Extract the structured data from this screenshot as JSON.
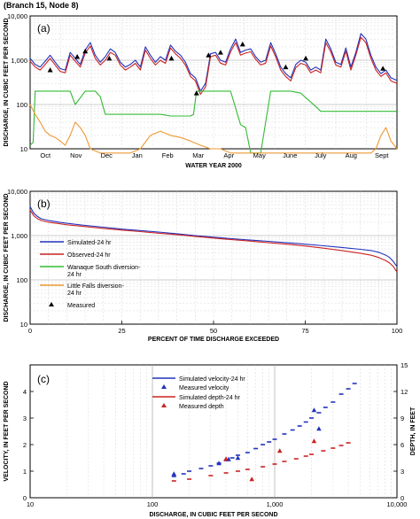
{
  "header": {
    "title": "(Branch 15, Node 8)"
  },
  "charts": [
    {
      "type": "line",
      "panel_label": "(a)",
      "title": "",
      "xlabel": "WATER YEAR 2000",
      "ylabel": "DISCHARGE, IN CUBIC FEET PER SECOND",
      "x_categories": [
        "Oct",
        "Nov",
        "Dec",
        "Jan",
        "Feb",
        "Mar",
        "Apr",
        "May",
        "June",
        "July",
        "Aug",
        "Sept"
      ],
      "y_scale": "log",
      "ylim": [
        10,
        10000
      ],
      "y_ticks": [
        10,
        100,
        "1,000",
        "10,000"
      ],
      "grid": true
    },
    {
      "type": "line",
      "panel_label": "(b)",
      "title": "",
      "xlabel": "PERCENT OF TIME DISCHARGE EXCEEDED",
      "ylabel": "DISCHARGE, IN CUBIC FEET PER SECOND",
      "x_ticks": [
        0,
        25,
        50,
        75,
        100
      ],
      "xlim": [
        0,
        100
      ],
      "y_scale": "log",
      "ylim": [
        10,
        10000
      ],
      "y_ticks": [
        10,
        100,
        "1,000",
        "10,000"
      ],
      "grid": true,
      "legend_position": "left",
      "legend": [
        "Simulated-24 hr",
        "Observed-24 hr",
        "Wanaque South diversion-\n24 hr",
        "Little Falls diversion-\n24 hr",
        "Measured"
      ]
    },
    {
      "type": "scatter",
      "panel_label": "(c)",
      "title": "",
      "xlabel": "DISCHARGE, IN CUBIC FEET PER SECOND",
      "ylabel": "VELOCITY, IN FEET PER SECOND",
      "ylabel_right": "DEPTH, IN FEET",
      "x_scale": "log",
      "xlim": [
        10,
        10000
      ],
      "x_ticks": [
        10,
        100,
        "1,000",
        "10,000"
      ],
      "y_ticks": [
        0,
        1,
        2,
        3,
        4
      ],
      "ylim": [
        0,
        5
      ],
      "y_ticks_right": [
        0,
        3,
        6,
        9,
        12,
        15
      ],
      "ylim_right": [
        0,
        15
      ],
      "grid": true,
      "legend_position": "top-center",
      "legend": [
        "Simulated velocity-24 hr",
        "Measured velocity",
        "Simulated depth-24 hr",
        "Measured depth"
      ]
    }
  ],
  "chart_data": [
    {
      "type": "line",
      "ylim": [
        10,
        10000
      ],
      "y_scale": "log",
      "x_day_range": [
        0,
        366
      ],
      "series": [
        {
          "name": "Simulated-24 hr",
          "color": "#2233bb",
          "x": [
            0,
            5,
            10,
            15,
            20,
            25,
            30,
            35,
            40,
            45,
            50,
            55,
            60,
            65,
            70,
            75,
            80,
            85,
            90,
            95,
            100,
            105,
            110,
            115,
            120,
            125,
            130,
            135,
            140,
            145,
            150,
            155,
            160,
            165,
            170,
            175,
            180,
            185,
            190,
            195,
            200,
            205,
            210,
            215,
            220,
            225,
            230,
            235,
            240,
            245,
            250,
            255,
            260,
            265,
            270,
            275,
            280,
            285,
            290,
            295,
            300,
            305,
            310,
            315,
            320,
            325,
            330,
            335,
            340,
            345,
            350,
            355,
            360,
            366
          ],
          "y": [
            1100,
            800,
            700,
            950,
            1300,
            900,
            650,
            600,
            1500,
            1100,
            800,
            1700,
            2500,
            1300,
            900,
            1200,
            1800,
            1500,
            900,
            700,
            800,
            1000,
            700,
            2000,
            1300,
            900,
            1200,
            1000,
            2200,
            1600,
            1300,
            900,
            500,
            400,
            200,
            300,
            1400,
            1500,
            1000,
            900,
            1800,
            3000,
            1500,
            1700,
            1800,
            1200,
            900,
            1000,
            2500,
            1400,
            700,
            500,
            400,
            800,
            1000,
            900,
            600,
            700,
            600,
            3000,
            1800,
            900,
            800,
            1900,
            700,
            1500,
            4000,
            3000,
            1300,
            700,
            500,
            600,
            400,
            350
          ]
        },
        {
          "name": "Observed-24 hr",
          "color": "#cc2222",
          "x": [
            0,
            5,
            10,
            15,
            20,
            25,
            30,
            35,
            40,
            45,
            50,
            55,
            60,
            65,
            70,
            75,
            80,
            85,
            90,
            95,
            100,
            105,
            110,
            115,
            120,
            125,
            130,
            135,
            140,
            145,
            150,
            155,
            160,
            165,
            170,
            175,
            180,
            185,
            190,
            195,
            200,
            205,
            210,
            215,
            220,
            225,
            230,
            235,
            240,
            245,
            250,
            255,
            260,
            265,
            270,
            275,
            280,
            285,
            290,
            295,
            300,
            305,
            310,
            315,
            320,
            325,
            330,
            335,
            340,
            345,
            350,
            355,
            360,
            366
          ],
          "y": [
            950,
            700,
            600,
            800,
            1100,
            780,
            560,
            520,
            1300,
            950,
            700,
            1450,
            2100,
            1100,
            780,
            1000,
            1500,
            1300,
            780,
            600,
            700,
            850,
            600,
            1700,
            1100,
            780,
            1000,
            850,
            1900,
            1400,
            1100,
            780,
            430,
            340,
            170,
            250,
            1200,
            1300,
            860,
            780,
            1550,
            2500,
            1300,
            1450,
            1550,
            1050,
            780,
            860,
            2100,
            1200,
            600,
            430,
            340,
            680,
            850,
            780,
            520,
            600,
            520,
            2500,
            1550,
            780,
            700,
            1600,
            600,
            1300,
            3300,
            2500,
            1100,
            600,
            430,
            520,
            340,
            300
          ]
        },
        {
          "name": "Wanaque South diversion-\n24 hr",
          "color": "#33bb33",
          "x": [
            0,
            3,
            5,
            30,
            40,
            45,
            55,
            60,
            65,
            70,
            75,
            80,
            85,
            95,
            100,
            105,
            115,
            125,
            130,
            140,
            145,
            150,
            155,
            160,
            163,
            166,
            175,
            185,
            190,
            200,
            210,
            215,
            220,
            230,
            240,
            250,
            260,
            270,
            285,
            290,
            300,
            310,
            320,
            330,
            345,
            360,
            366
          ],
          "y": [
            12,
            14,
            200,
            200,
            200,
            100,
            200,
            200,
            200,
            150,
            60,
            60,
            60,
            60,
            60,
            60,
            60,
            60,
            60,
            55,
            55,
            55,
            55,
            55,
            60,
            200,
            200,
            200,
            200,
            200,
            35,
            30,
            8,
            8,
            200,
            200,
            200,
            180,
            90,
            70,
            70,
            70,
            70,
            70,
            70,
            70,
            70
          ]
        },
        {
          "name": "Little Falls diversion-\n24 hr",
          "color": "#ee9933",
          "x": [
            0,
            5,
            10,
            15,
            20,
            25,
            30,
            35,
            40,
            45,
            50,
            55,
            60,
            70,
            80,
            90,
            100,
            110,
            120,
            130,
            140,
            150,
            160,
            170,
            180,
            190,
            200,
            210,
            220,
            230,
            240,
            250,
            260,
            270,
            280,
            290,
            300,
            310,
            320,
            330,
            340,
            345,
            350,
            355,
            360,
            366
          ],
          "y": [
            100,
            60,
            40,
            25,
            20,
            18,
            15,
            12,
            20,
            40,
            30,
            20,
            10,
            8,
            8,
            8,
            8,
            10,
            20,
            25,
            20,
            18,
            15,
            12,
            10,
            10,
            8,
            8,
            8,
            8,
            8,
            8,
            8,
            8,
            8,
            8,
            8,
            8,
            8,
            8,
            8,
            10,
            20,
            30,
            15,
            10
          ]
        },
        {
          "name": "Measured",
          "color": "#000000",
          "marker": "triangle",
          "x": [
            20,
            47,
            55,
            79,
            141,
            166,
            178,
            190,
            212,
            255,
            275,
            352
          ],
          "y": [
            600,
            1200,
            1600,
            1100,
            1100,
            180,
            1300,
            1500,
            2300,
            700,
            1100,
            650
          ]
        }
      ]
    },
    {
      "type": "line",
      "xlim": [
        0,
        100
      ],
      "ylim": [
        10,
        10000
      ],
      "y_scale": "log",
      "series": [
        {
          "name": "Simulated-24 hr",
          "color": "#2233bb",
          "x": [
            0,
            1,
            2,
            3,
            5,
            8,
            10,
            15,
            20,
            25,
            30,
            35,
            40,
            45,
            50,
            55,
            60,
            65,
            70,
            75,
            80,
            85,
            90,
            93,
            95,
            97,
            98,
            99,
            100
          ],
          "y": [
            4500,
            3200,
            2700,
            2400,
            2200,
            2000,
            1900,
            1700,
            1550,
            1400,
            1300,
            1200,
            1100,
            1000,
            920,
            850,
            790,
            740,
            690,
            640,
            590,
            540,
            490,
            460,
            420,
            360,
            320,
            260,
            200
          ]
        },
        {
          "name": "Observed-24 hr",
          "color": "#cc2222",
          "x": [
            0,
            1,
            2,
            3,
            5,
            8,
            10,
            15,
            20,
            25,
            30,
            35,
            40,
            45,
            50,
            55,
            60,
            65,
            70,
            75,
            80,
            85,
            90,
            93,
            95,
            97,
            98,
            99,
            100
          ],
          "y": [
            3800,
            2800,
            2400,
            2200,
            2000,
            1850,
            1750,
            1600,
            1450,
            1330,
            1230,
            1130,
            1050,
            960,
            880,
            810,
            750,
            690,
            640,
            580,
            520,
            460,
            400,
            360,
            320,
            270,
            240,
            200,
            150
          ]
        }
      ]
    },
    {
      "type": "scatter",
      "x_scale": "log",
      "xlim": [
        10,
        10000
      ],
      "ylim": [
        0,
        5
      ],
      "ylim_right": [
        0,
        15
      ],
      "series": [
        {
          "name": "Simulated velocity-24 hr",
          "color": "#2233bb",
          "axis": "left",
          "marker": "dash",
          "x": [
            150,
            180,
            200,
            250,
            300,
            350,
            400,
            450,
            500,
            600,
            700,
            800,
            900,
            1000,
            1200,
            1400,
            1600,
            1800,
            2000,
            2300,
            2600,
            3000,
            3500,
            4000,
            4500
          ],
          "y": [
            0.8,
            0.9,
            1.0,
            1.1,
            1.2,
            1.3,
            1.4,
            1.5,
            1.6,
            1.7,
            1.85,
            2.0,
            2.1,
            2.2,
            2.4,
            2.55,
            2.7,
            2.85,
            3.0,
            3.2,
            3.4,
            3.6,
            3.9,
            4.1,
            4.3
          ]
        },
        {
          "name": "Measured velocity",
          "color": "#2233bb",
          "axis": "left",
          "marker": "triangle",
          "x": [
            150,
            350,
            420,
            500,
            2100,
            2300
          ],
          "y": [
            0.9,
            1.3,
            1.45,
            1.5,
            3.3,
            2.6
          ]
        },
        {
          "name": "Simulated depth-24 hr",
          "color": "#cc2222",
          "axis": "right",
          "marker": "dash",
          "x": [
            150,
            200,
            300,
            400,
            500,
            600,
            800,
            1000,
            1200,
            1500,
            1800,
            2000,
            2500,
            3000,
            3500,
            4000
          ],
          "y": [
            1.9,
            2.1,
            2.5,
            2.8,
            3.0,
            3.2,
            3.5,
            3.8,
            4.1,
            4.4,
            4.7,
            4.9,
            5.3,
            5.6,
            5.9,
            6.2
          ]
        },
        {
          "name": "Measured depth",
          "color": "#cc2222",
          "axis": "right",
          "marker": "triangle",
          "x": [
            400,
            650,
            1100,
            2100
          ],
          "y": [
            4.4,
            2.1,
            5.3,
            6.4
          ]
        }
      ]
    }
  ]
}
